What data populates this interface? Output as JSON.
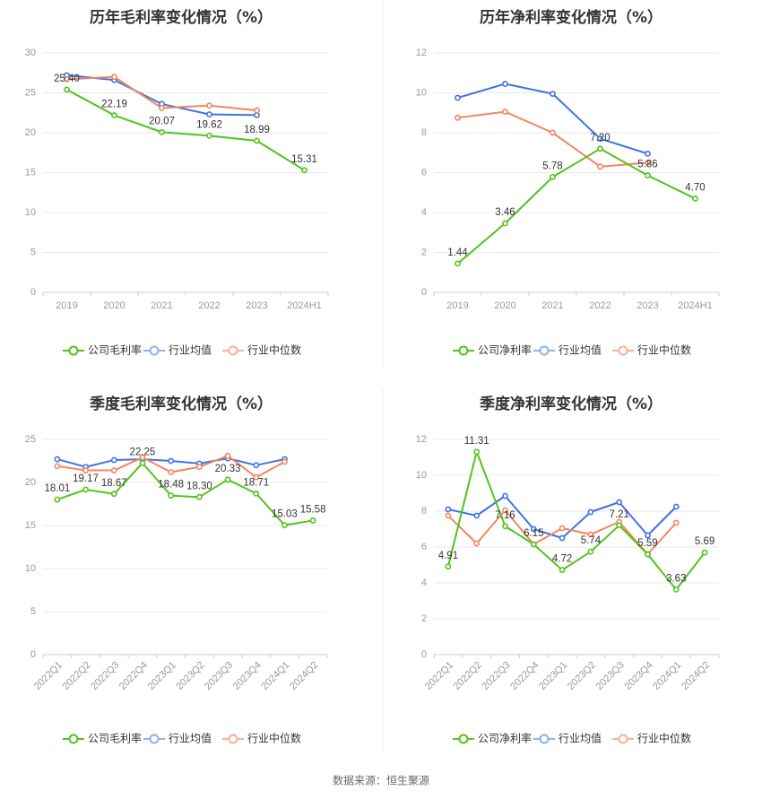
{
  "colors": {
    "company": "#52c41a",
    "industry_avg": "#3f73e6",
    "industry_median": "#f4845f"
  },
  "legend_labels": {
    "gross": [
      "公司毛利率",
      "行业均值",
      "行业中位数"
    ],
    "net": [
      "公司净利率",
      "行业均值",
      "行业中位数"
    ]
  },
  "source": "数据来源：恒生聚源",
  "chart_data": [
    {
      "type": "line",
      "title": "历年毛利率变化情况（%）",
      "categories": [
        "2019",
        "2020",
        "2021",
        "2022",
        "2023",
        "2024H1"
      ],
      "ylim": [
        0,
        30
      ],
      "yticks": [
        0,
        5,
        10,
        15,
        20,
        25,
        30
      ],
      "grid": true,
      "legend_position": "bottom",
      "series": [
        {
          "name": "公司毛利率",
          "values": [
            25.4,
            22.19,
            20.07,
            19.62,
            18.99,
            15.31
          ],
          "labeled": true
        },
        {
          "name": "行业均值",
          "values": [
            27.2,
            26.6,
            23.6,
            22.3,
            22.2,
            null
          ]
        },
        {
          "name": "行业中位数",
          "values": [
            26.7,
            27.0,
            23.1,
            23.4,
            22.8,
            null
          ]
        }
      ]
    },
    {
      "type": "line",
      "title": "历年净利率变化情况（%）",
      "categories": [
        "2019",
        "2020",
        "2021",
        "2022",
        "2023",
        "2024H1"
      ],
      "ylim": [
        0,
        12
      ],
      "yticks": [
        0,
        2,
        4,
        6,
        8,
        10,
        12
      ],
      "grid": true,
      "legend_position": "bottom",
      "series": [
        {
          "name": "公司净利率",
          "values": [
            1.44,
            3.46,
            5.78,
            7.2,
            5.86,
            4.7
          ],
          "labeled": true
        },
        {
          "name": "行业均值",
          "values": [
            9.75,
            10.45,
            9.95,
            7.7,
            6.95,
            null
          ]
        },
        {
          "name": "行业中位数",
          "values": [
            8.75,
            9.05,
            8.0,
            6.3,
            6.5,
            null
          ]
        }
      ]
    },
    {
      "type": "line",
      "title": "季度毛利率变化情况（%）",
      "categories": [
        "2022Q1",
        "2022Q2",
        "2022Q3",
        "2022Q4",
        "2023Q1",
        "2023Q2",
        "2023Q3",
        "2023Q4",
        "2024Q1",
        "2024Q2"
      ],
      "ylim": [
        0,
        25
      ],
      "yticks": [
        0,
        5,
        10,
        15,
        20,
        25
      ],
      "grid": true,
      "legend_position": "bottom",
      "series": [
        {
          "name": "公司毛利率",
          "values": [
            18.01,
            19.17,
            18.67,
            22.25,
            18.48,
            18.3,
            20.33,
            18.71,
            15.03,
            15.58
          ],
          "labeled": true
        },
        {
          "name": "行业均值",
          "values": [
            22.7,
            21.8,
            22.6,
            22.7,
            22.5,
            22.2,
            22.8,
            22.0,
            22.7,
            null
          ]
        },
        {
          "name": "行业中位数",
          "values": [
            21.9,
            21.4,
            21.4,
            22.9,
            21.2,
            21.8,
            23.1,
            20.6,
            22.4,
            null
          ]
        }
      ]
    },
    {
      "type": "line",
      "title": "季度净利率变化情况（%）",
      "categories": [
        "2022Q1",
        "2022Q2",
        "2022Q3",
        "2022Q4",
        "2023Q1",
        "2023Q2",
        "2023Q3",
        "2023Q4",
        "2024Q1",
        "2024Q2"
      ],
      "ylim": [
        0,
        12
      ],
      "yticks": [
        0,
        2,
        4,
        6,
        8,
        10,
        12
      ],
      "grid": true,
      "legend_position": "bottom",
      "series": [
        {
          "name": "公司净利率",
          "values": [
            4.91,
            11.31,
            7.16,
            6.15,
            4.72,
            5.74,
            7.21,
            5.59,
            3.63,
            5.69
          ],
          "labeled": true
        },
        {
          "name": "行业均值",
          "values": [
            8.1,
            7.75,
            8.85,
            7.0,
            6.5,
            7.95,
            8.5,
            6.65,
            8.25,
            null
          ]
        },
        {
          "name": "行业中位数",
          "values": [
            7.75,
            6.2,
            8.05,
            6.15,
            7.05,
            6.7,
            7.4,
            5.6,
            7.35,
            null
          ]
        }
      ]
    }
  ]
}
